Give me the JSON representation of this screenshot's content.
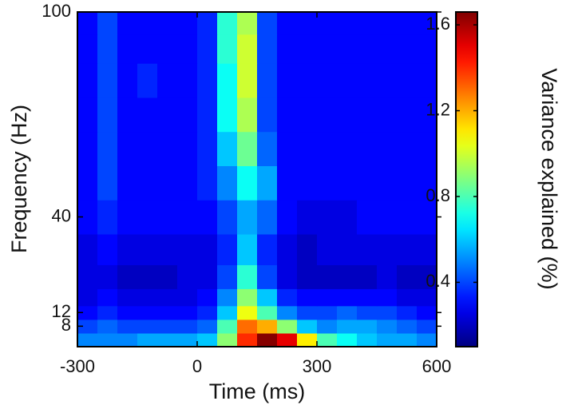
{
  "chart_data": {
    "type": "heatmap",
    "xlabel": "Time (ms)",
    "ylabel": "Frequency (Hz)",
    "colorbar_label": "Variance explained (%)",
    "colormap": "jet",
    "x": [
      -275,
      -225,
      -175,
      -125,
      -75,
      -25,
      25,
      75,
      125,
      175,
      225,
      275,
      325,
      375,
      425,
      475,
      525,
      575
    ],
    "y": [
      4,
      8,
      12,
      16,
      22,
      30,
      40,
      50,
      60,
      70,
      80,
      90,
      97
    ],
    "values": [
      [
        0.5,
        0.5,
        0.5,
        0.55,
        0.55,
        0.55,
        0.6,
        0.9,
        1.4,
        1.65,
        1.5,
        1.1,
        0.8,
        0.7,
        0.6,
        0.55,
        0.55,
        0.5
      ],
      [
        0.4,
        0.45,
        0.4,
        0.4,
        0.4,
        0.4,
        0.45,
        0.8,
        1.3,
        1.2,
        0.9,
        0.6,
        0.5,
        0.55,
        0.55,
        0.5,
        0.45,
        0.4
      ],
      [
        0.3,
        0.35,
        0.3,
        0.3,
        0.3,
        0.3,
        0.35,
        0.6,
        1.05,
        0.8,
        0.5,
        0.4,
        0.4,
        0.45,
        0.4,
        0.4,
        0.35,
        0.3
      ],
      [
        0.25,
        0.3,
        0.25,
        0.25,
        0.25,
        0.25,
        0.3,
        0.5,
        0.9,
        0.6,
        0.35,
        0.3,
        0.3,
        0.3,
        0.3,
        0.3,
        0.25,
        0.25
      ],
      [
        0.25,
        0.25,
        0.2,
        0.2,
        0.2,
        0.25,
        0.25,
        0.4,
        0.75,
        0.4,
        0.25,
        0.2,
        0.2,
        0.2,
        0.2,
        0.25,
        0.2,
        0.2
      ],
      [
        0.25,
        0.3,
        0.25,
        0.25,
        0.25,
        0.25,
        0.25,
        0.35,
        0.6,
        0.35,
        0.25,
        0.2,
        0.25,
        0.25,
        0.25,
        0.25,
        0.25,
        0.25
      ],
      [
        0.3,
        0.35,
        0.3,
        0.3,
        0.3,
        0.3,
        0.3,
        0.4,
        0.55,
        0.45,
        0.3,
        0.25,
        0.25,
        0.25,
        0.3,
        0.3,
        0.3,
        0.3
      ],
      [
        0.3,
        0.4,
        0.3,
        0.3,
        0.3,
        0.3,
        0.35,
        0.5,
        0.7,
        0.55,
        0.3,
        0.3,
        0.3,
        0.3,
        0.3,
        0.3,
        0.3,
        0.3
      ],
      [
        0.3,
        0.4,
        0.3,
        0.3,
        0.3,
        0.3,
        0.35,
        0.6,
        0.85,
        0.45,
        0.3,
        0.3,
        0.3,
        0.3,
        0.3,
        0.3,
        0.3,
        0.3
      ],
      [
        0.3,
        0.4,
        0.3,
        0.3,
        0.3,
        0.3,
        0.35,
        0.7,
        0.95,
        0.4,
        0.3,
        0.3,
        0.3,
        0.3,
        0.3,
        0.3,
        0.3,
        0.3
      ],
      [
        0.3,
        0.4,
        0.3,
        0.35,
        0.3,
        0.3,
        0.35,
        0.7,
        1.0,
        0.4,
        0.3,
        0.3,
        0.3,
        0.3,
        0.3,
        0.3,
        0.3,
        0.3
      ],
      [
        0.3,
        0.4,
        0.3,
        0.3,
        0.3,
        0.3,
        0.35,
        0.75,
        1.0,
        0.4,
        0.3,
        0.3,
        0.3,
        0.3,
        0.3,
        0.3,
        0.3,
        0.3
      ],
      [
        0.3,
        0.4,
        0.3,
        0.3,
        0.3,
        0.3,
        0.35,
        0.75,
        0.95,
        0.4,
        0.3,
        0.3,
        0.3,
        0.3,
        0.3,
        0.3,
        0.3,
        0.3
      ]
    ],
    "xlim": [
      -300,
      600
    ],
    "xticks": [
      -300,
      0,
      300,
      600
    ],
    "ylim": [
      2,
      100
    ],
    "yticks": [
      8,
      12,
      40,
      100
    ],
    "clim": [
      0.1,
      1.66
    ],
    "cticks": [
      0.4,
      0.8,
      1.2,
      1.6
    ]
  }
}
